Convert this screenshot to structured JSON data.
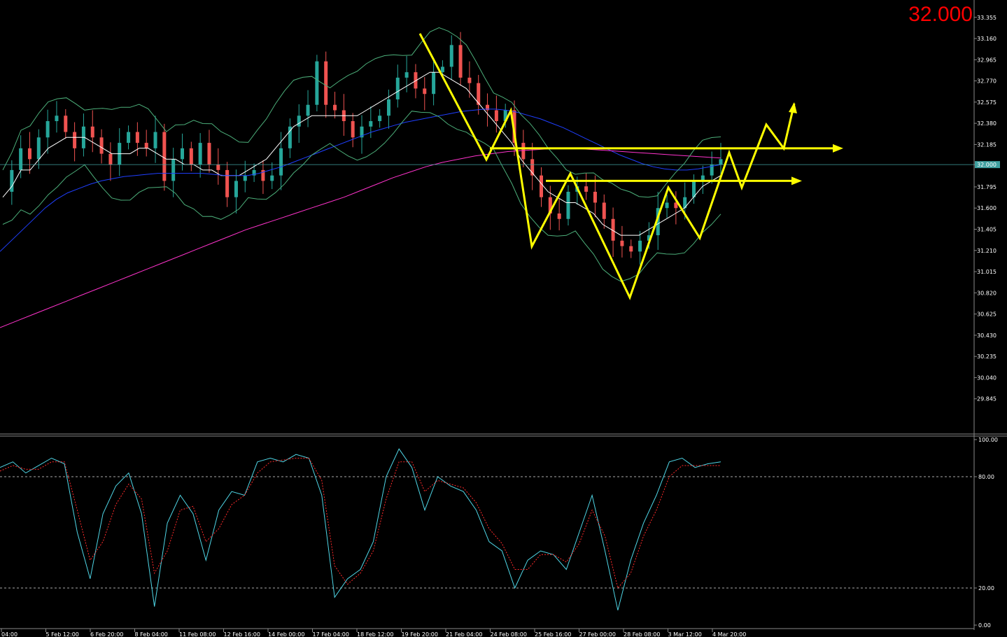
{
  "symbol_price_label": "32.000",
  "colors": {
    "background": "#000000",
    "bull_candle": "#26a69a",
    "bear_candle": "#ef5350",
    "ma_fast": "#ffffff",
    "ma_slow": "#ffff66",
    "ma_blue": "#1f3fff",
    "ma_magenta": "#ff33cc",
    "bollinger": "#4caf7a",
    "pattern": "#ffff00",
    "stoch_main": "#4fd6e6",
    "stoch_signal": "#ff2a2a",
    "axis_text": "#ffffff",
    "price_label": "#ff0000"
  },
  "chart_data": [
    {
      "type": "candlestick",
      "grid": false,
      "ylim": [
        29.65,
        33.45
      ],
      "y_ticks": [
        "33.355",
        "33.160",
        "32.965",
        "32.770",
        "32.575",
        "32.380",
        "32.185",
        "32.000",
        "31.795",
        "31.600",
        "31.405",
        "31.210",
        "31.015",
        "30.820",
        "30.625",
        "30.430",
        "30.235",
        "30.040",
        "29.845"
      ],
      "current_price": 32.0,
      "x_labels": [
        "04:00",
        "5 Feb 12:00",
        "6 Feb 20:00",
        "8 Feb 04:00",
        "11 Feb 08:00",
        "12 Feb 16:00",
        "14 Feb 00:00",
        "17 Feb 04:00",
        "18 Feb 12:00",
        "19 Feb 20:00",
        "21 Feb 04:00",
        "24 Feb 08:00",
        "25 Feb 16:00",
        "27 Feb 00:00",
        "28 Feb 08:00",
        "3 Mar 12:00",
        "4 Mar 20:00"
      ],
      "horizontal_levels": [
        32.15,
        31.85
      ],
      "close_series": [
        31.75,
        31.95,
        32.15,
        32.05,
        32.25,
        32.4,
        32.45,
        32.3,
        32.15,
        32.35,
        32.25,
        32.1,
        32.0,
        32.2,
        32.3,
        32.2,
        32.15,
        32.3,
        31.85,
        32.05,
        32.15,
        32.0,
        32.2,
        32.0,
        31.95,
        31.7,
        31.85,
        31.9,
        31.95,
        31.85,
        31.9,
        32.15,
        32.35,
        32.45,
        32.55,
        32.95,
        32.55,
        32.5,
        32.4,
        32.25,
        32.35,
        32.4,
        32.45,
        32.6,
        32.8,
        32.85,
        32.7,
        32.65,
        32.85,
        32.9,
        33.1,
        32.8,
        32.75,
        32.55,
        32.5,
        32.4,
        32.5,
        32.2,
        32.05,
        31.9,
        31.7,
        31.55,
        31.5,
        31.75,
        31.8,
        31.75,
        31.65,
        31.5,
        31.3,
        31.25,
        31.2,
        31.3,
        31.35,
        31.6,
        31.65,
        31.6,
        31.7,
        31.85,
        31.9,
        32.0,
        32.05
      ],
      "series": [
        {
          "name": "",
          "values": [
            31.7,
            31.8,
            31.95,
            31.95,
            32.05,
            32.15,
            32.2,
            32.25,
            32.25,
            32.25,
            32.2,
            32.15,
            32.1,
            32.1,
            32.1,
            32.15,
            32.15,
            32.1,
            32.05,
            32.05,
            32.0,
            32.0,
            31.95,
            31.95,
            31.9,
            31.9,
            31.9,
            31.95,
            32.0,
            32.05,
            32.15,
            32.25,
            32.35,
            32.4,
            32.45,
            32.45,
            32.45,
            32.45,
            32.45,
            32.45,
            32.5,
            32.55,
            32.6,
            32.65,
            32.7,
            32.75,
            32.8,
            32.85,
            32.85,
            32.8,
            32.75,
            32.7,
            32.6,
            32.5,
            32.4,
            32.3,
            32.2,
            32.05,
            31.95,
            31.85,
            31.75,
            31.7,
            31.65,
            31.65,
            31.6,
            31.55,
            31.45,
            31.4,
            31.35,
            31.35,
            31.35,
            31.4,
            31.45,
            31.5,
            31.55,
            31.6,
            31.7,
            31.8,
            31.85,
            31.9
          ]
        },
        {
          "name": "",
          "values": [
            31.2,
            31.3,
            31.4,
            31.5,
            31.6,
            31.68,
            31.74,
            31.78,
            31.82,
            31.85,
            31.87,
            31.89,
            31.9,
            31.91,
            31.92,
            31.92,
            31.92,
            31.92,
            31.92,
            31.91,
            31.9,
            31.9,
            31.9,
            31.92,
            31.95,
            31.98,
            32.02,
            32.06,
            32.1,
            32.14,
            32.18,
            32.22,
            32.26,
            32.3,
            32.33,
            32.36,
            32.39,
            32.41,
            32.43,
            32.45,
            32.47,
            32.49,
            32.5,
            32.51,
            32.51,
            32.5,
            32.48,
            32.45,
            32.42,
            32.38,
            32.34,
            32.29,
            32.24,
            32.19,
            32.14,
            32.09,
            32.05,
            32.01,
            31.98,
            31.96,
            31.95,
            31.95,
            31.96,
            31.98,
            32.0
          ]
        },
        {
          "name": "",
          "values": [
            30.5,
            30.56,
            30.62,
            30.68,
            30.74,
            30.8,
            30.86,
            30.92,
            30.98,
            31.04,
            31.1,
            31.16,
            31.22,
            31.28,
            31.34,
            31.4,
            31.45,
            31.5,
            31.55,
            31.6,
            31.65,
            31.7,
            31.76,
            31.82,
            31.88,
            31.93,
            31.98,
            32.02,
            32.05,
            32.08,
            32.1,
            32.12,
            32.13,
            32.14,
            32.15,
            32.15,
            32.14,
            32.13,
            32.12,
            32.11,
            32.1,
            32.09,
            32.08,
            32.07,
            32.06
          ]
        }
      ]
    },
    {
      "type": "line",
      "title": "",
      "ylim": [
        0,
        100
      ],
      "y_ticks": [
        "100.00",
        "80.00",
        "20.00",
        "0.00"
      ],
      "levels": [
        80,
        20
      ],
      "series": [
        {
          "name": "",
          "values": [
            85,
            88,
            82,
            86,
            90,
            87,
            50,
            25,
            60,
            75,
            82,
            60,
            10,
            55,
            70,
            60,
            35,
            62,
            72,
            70,
            88,
            90,
            88,
            92,
            90,
            70,
            15,
            25,
            30,
            45,
            80,
            95,
            85,
            62,
            80,
            75,
            72,
            62,
            45,
            40,
            20,
            35,
            40,
            38,
            30,
            50,
            70,
            40,
            8,
            35,
            55,
            70,
            88,
            90,
            85,
            87,
            88
          ]
        },
        {
          "name": "",
          "values": [
            83,
            86,
            84,
            84,
            88,
            88,
            62,
            35,
            45,
            65,
            76,
            68,
            28,
            40,
            62,
            64,
            45,
            52,
            65,
            70,
            82,
            88,
            89,
            90,
            90,
            78,
            32,
            22,
            28,
            40,
            68,
            88,
            88,
            72,
            78,
            76,
            74,
            66,
            52,
            44,
            30,
            30,
            38,
            38,
            34,
            44,
            62,
            48,
            20,
            28,
            48,
            62,
            80,
            86,
            86,
            86,
            86
          ]
        }
      ]
    }
  ]
}
